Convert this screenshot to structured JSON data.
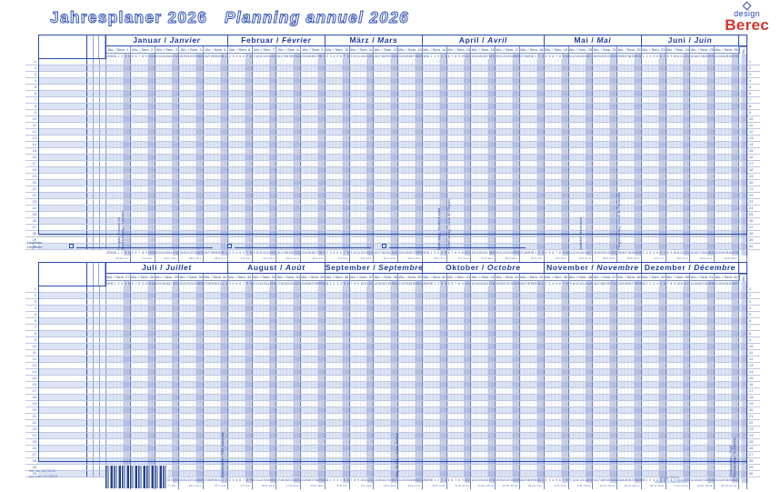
{
  "titles": {
    "de": "Jahresplaner 2026",
    "fr": "Planning annuel 2026"
  },
  "logo": {
    "design": "design",
    "brand": "Berec"
  },
  "colors": {
    "ink": "#26439e",
    "border": "#2b4bb0",
    "brand_red": "#d3352b",
    "row_alt": "#dde4f4",
    "weekend": "rgba(104,124,188,0.34)"
  },
  "week_label": "Wo. / Sem.",
  "week_label_short": "Wo.",
  "rows_per_grid": 30,
  "week1_monday": "2025-12-29",
  "grids": [
    {
      "name": "top",
      "months": [
        {
          "de": "Januar",
          "fr": "Janvier",
          "weeks": [
            1,
            2,
            3,
            4,
            5
          ]
        },
        {
          "de": "Februar",
          "fr": "Février",
          "weeks": [
            6,
            7,
            8,
            9
          ]
        },
        {
          "de": "März",
          "fr": "Mars",
          "weeks": [
            10,
            11,
            12,
            13
          ]
        },
        {
          "de": "April",
          "fr": "Avril",
          "weeks": [
            14,
            15,
            16,
            17,
            18
          ]
        },
        {
          "de": "Mai",
          "fr": "Mai",
          "weeks": [
            19,
            20,
            21,
            22
          ]
        },
        {
          "de": "Juni",
          "fr": "Juin",
          "weeks": [
            23,
            24,
            25,
            26
          ]
        }
      ],
      "trailing_week": 27,
      "holidays": [
        {
          "date": "2026-01-01",
          "label": "Neujahr / Nouvel An"
        },
        {
          "date": "2026-01-02",
          "label": "Berchtoldstag / 2 janvier"
        },
        {
          "date": "2026-04-03",
          "label": "Karfreitag / Vendredi saint"
        },
        {
          "date": "2026-04-06",
          "label": "Ostermontag / Lundi de Pâques"
        },
        {
          "date": "2026-05-14",
          "label": "Auffahrt / Ascension"
        },
        {
          "date": "2026-05-25",
          "label": "Pfingstmontag / Lundi de Pentecôte"
        }
      ]
    },
    {
      "name": "bottom",
      "months": [
        {
          "de": "Juli",
          "fr": "Juillet",
          "weeks": [
            27,
            28,
            29,
            30,
            31
          ]
        },
        {
          "de": "August",
          "fr": "Août",
          "weeks": [
            32,
            33,
            34,
            35
          ]
        },
        {
          "de": "September",
          "fr": "Septembre",
          "weeks": [
            36,
            37,
            38,
            39
          ]
        },
        {
          "de": "Oktober",
          "fr": "Octobre",
          "weeks": [
            40,
            41,
            42,
            43,
            44
          ]
        },
        {
          "de": "November",
          "fr": "Novembre",
          "weeks": [
            45,
            46,
            47,
            48
          ]
        },
        {
          "de": "Dezember",
          "fr": "Décembre",
          "weeks": [
            49,
            50,
            51,
            52
          ]
        }
      ],
      "trailing_week": 53,
      "holidays": [
        {
          "date": "2026-08-01",
          "label": "Bundesfeier / Fête nationale"
        },
        {
          "date": "2026-09-20",
          "label": "Eidg. Bettag / Jeûne fédéral"
        },
        {
          "date": "2026-12-25",
          "label": "Weihnachten / Noël"
        },
        {
          "date": "2026-12-26",
          "label": "Stephanstag / St-Étienne"
        }
      ]
    }
  ],
  "legend": {
    "de": "Legende:",
    "fr": "Légende:"
  },
  "footer": {
    "art_de": "Art.-Nr. 61753 B",
    "art_fr": "No d'art. 61753 B",
    "imprint1": "design Berec",
    "imprint2": "Made in Switzerland"
  }
}
